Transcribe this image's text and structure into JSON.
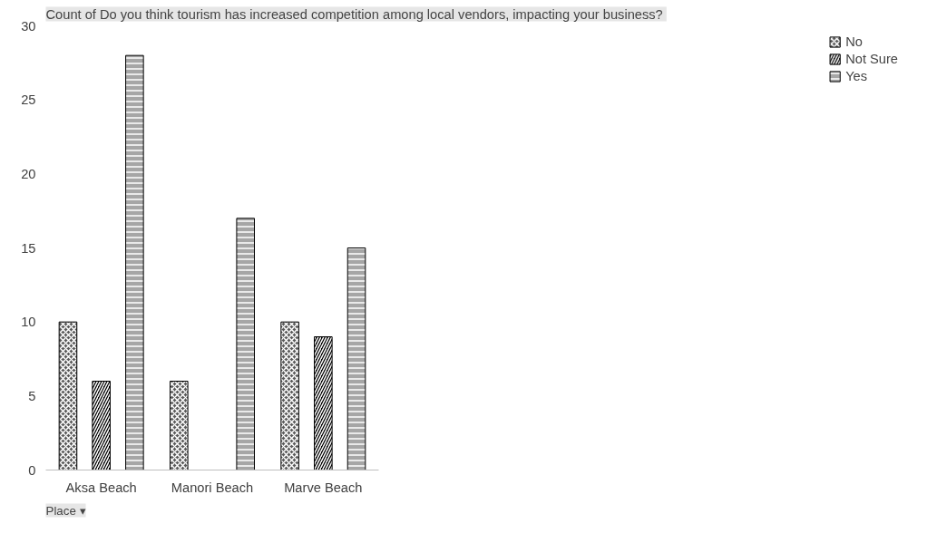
{
  "chart_data": {
    "type": "bar",
    "title": "Count of  Do you think tourism has increased competition among local vendors, impacting your business?",
    "categories": [
      "Aksa Beach",
      "Manori Beach",
      "Marve Beach"
    ],
    "series": [
      {
        "name": "No",
        "color": "#595959",
        "values": [
          10,
          6,
          10
        ]
      },
      {
        "name": "Not Sure",
        "color": "#000000",
        "values": [
          6,
          null,
          9
        ]
      },
      {
        "name": "Yes",
        "color": "#a6a6a6",
        "values": [
          28,
          17,
          15
        ]
      }
    ],
    "ylim": [
      0,
      30
    ],
    "yticks": [
      0,
      5,
      10,
      15,
      20,
      25,
      30
    ],
    "grid": false,
    "legend": "right",
    "annotations": [
      "Place ▾"
    ]
  }
}
